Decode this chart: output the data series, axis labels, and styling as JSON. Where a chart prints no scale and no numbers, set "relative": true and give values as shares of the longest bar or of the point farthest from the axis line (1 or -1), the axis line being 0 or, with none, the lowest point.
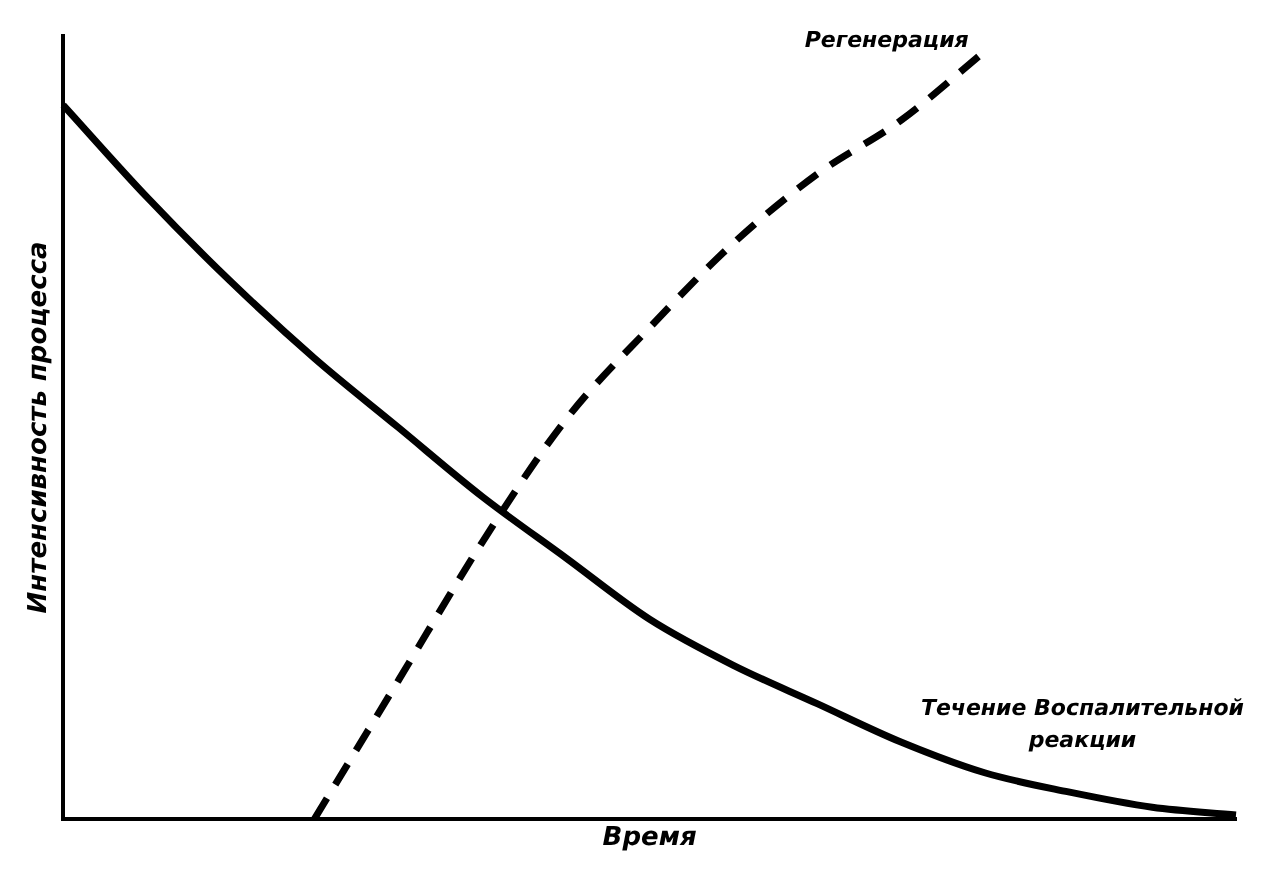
{
  "chart_data": {
    "type": "line",
    "relative": true,
    "xlabel": "Время",
    "ylabel": "Интенсивность процесса",
    "categories": [
      null,
      null,
      null,
      null,
      null,
      null,
      null,
      null,
      null,
      null,
      null,
      null,
      null,
      null,
      null
    ],
    "legend": false,
    "grid": false,
    "tick_labels": false,
    "marker": "none",
    "series": [
      {
        "name": "Течение Воспалительной реакции",
        "color": "#000000",
        "line_style": "solid",
        "values": [
          0.93,
          0.81,
          0.7,
          0.6,
          0.51,
          0.42,
          0.34,
          0.26,
          0.2,
          0.15,
          0.1,
          0.06,
          0.035,
          0.015,
          0.005
        ]
      },
      {
        "name": "Регенерация",
        "color": "#000000",
        "line_style": "dashed",
        "values": [
          null,
          null,
          null,
          0,
          0.18,
          0.36,
          0.52,
          0.64,
          0.75,
          0.84,
          0.91,
          1,
          null,
          null,
          null
        ]
      }
    ]
  }
}
